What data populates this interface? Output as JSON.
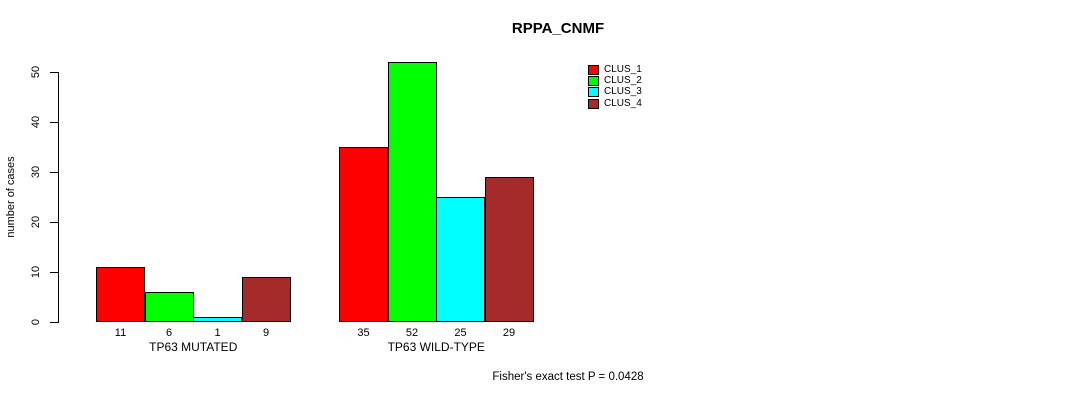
{
  "chart_data": {
    "type": "bar",
    "title": "RPPA_CNMF",
    "ylabel": "number of cases",
    "xlabel": "",
    "ylim": [
      0,
      52
    ],
    "yticks": [
      0,
      10,
      20,
      30,
      40,
      50
    ],
    "grid": false,
    "legend_position": "top-right",
    "categories": [
      "TP63 MUTATED",
      "TP63 WILD-TYPE"
    ],
    "series": [
      {
        "name": "CLUS_1",
        "color": "#ff0000",
        "values": [
          11,
          35
        ]
      },
      {
        "name": "CLUS_2",
        "color": "#00ff00",
        "values": [
          6,
          52
        ]
      },
      {
        "name": "CLUS_3",
        "color": "#00ffff",
        "values": [
          1,
          25
        ]
      },
      {
        "name": "CLUS_4",
        "color": "#a52a2a",
        "values": [
          9,
          29
        ]
      }
    ],
    "groups": [
      {
        "label": "TP63 MUTATED",
        "values": [
          11,
          6,
          1,
          9
        ]
      },
      {
        "label": "TP63 WILD-TYPE",
        "values": [
          35,
          52,
          25,
          29
        ]
      }
    ],
    "bar_value_labels_shown": true,
    "annotation": "Fisher's exact test P = 0.0428",
    "colors": {
      "background": "#ffffff",
      "axis": "#000000",
      "bar_border": "#000000",
      "text": "#000000"
    }
  }
}
